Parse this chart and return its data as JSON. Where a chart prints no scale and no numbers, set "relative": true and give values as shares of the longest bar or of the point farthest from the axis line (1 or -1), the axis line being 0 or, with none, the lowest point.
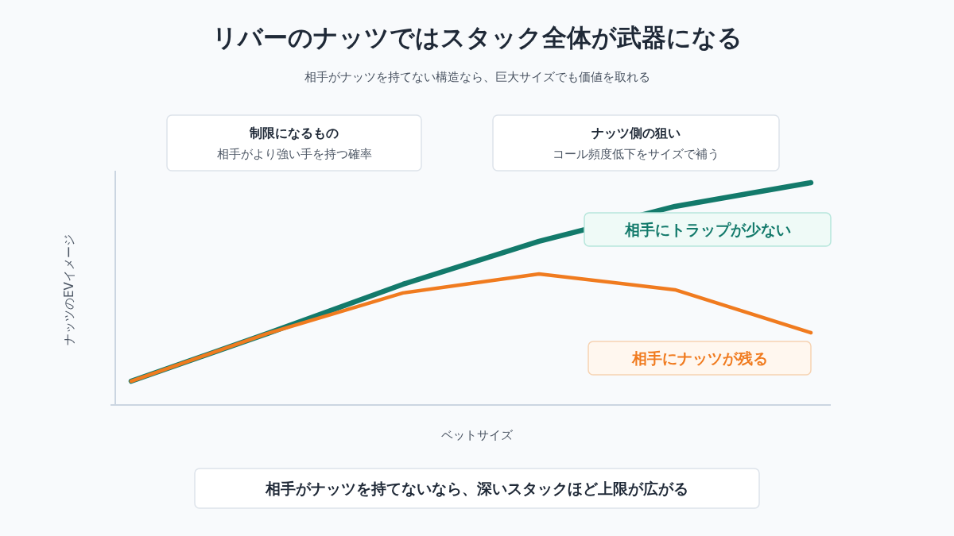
{
  "chart_data": {
    "type": "line",
    "title": "リバーのナッツではスタック全体が武器になる",
    "subtitle": "相手がナッツを持てない構造なら、巨大サイズでも価値を取れる",
    "xlabel": "ベットサイズ",
    "ylabel": "ナッツのEVイメージ",
    "relative": true,
    "categories": [
      null,
      null,
      null,
      null,
      null,
      null
    ],
    "series": [
      {
        "name": "相手にトラップが少ない",
        "color": "#137a6b",
        "values": [
          0.107,
          0.321,
          0.543,
          0.736,
          0.893,
          1
        ]
      },
      {
        "name": "相手にナッツが残る",
        "color": "#f07b1f",
        "values": [
          0.107,
          0.321,
          0.504,
          0.589,
          0.518,
          0.325
        ]
      }
    ],
    "annotations": [
      "制限になるもの",
      "相手がより強い手を持つ確率",
      "ナッツ側の狙い",
      "コール頻度低下をサイズで補う",
      "相手がナッツを持てないなら、深いスタックほど上限が広がる"
    ],
    "grid": false,
    "legend": false,
    "marker": "none",
    "line_style": "solid"
  }
}
